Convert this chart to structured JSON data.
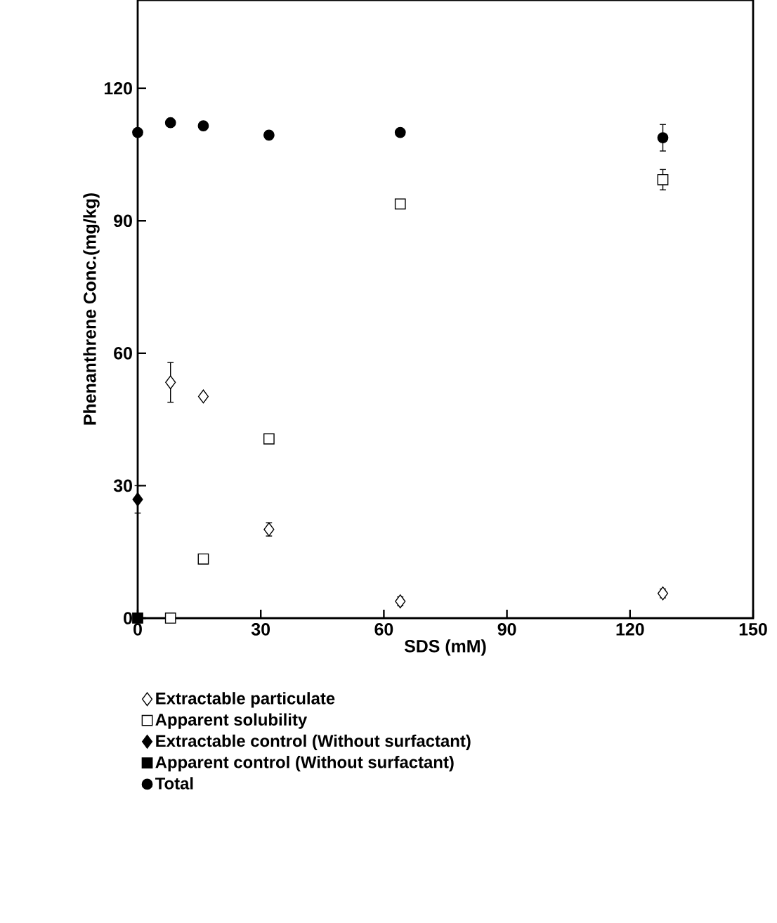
{
  "chart_data": {
    "type": "scatter",
    "xlabel": "SDS (mM)",
    "ylabel": "Phenanthrene Conc.(mg/kg)",
    "xlim": [
      0,
      150
    ],
    "ylim": [
      0,
      140
    ],
    "xticks": [
      0,
      30,
      60,
      90,
      120,
      150
    ],
    "yticks": [
      0,
      30,
      60,
      90,
      120
    ],
    "grid": false,
    "legend": "bottom",
    "series": [
      {
        "name": "Extractable particulate",
        "color": "#ffffff",
        "marker": "diamond",
        "x": [
          8,
          16,
          32,
          64,
          128
        ],
        "values": [
          53.4,
          50.2,
          20.1,
          3.8,
          5.6
        ],
        "errors": [
          4.5,
          0.5,
          1.5,
          1,
          1
        ]
      },
      {
        "name": "Apparent solubility",
        "color": "#ffffff",
        "marker": "square",
        "x": [
          8,
          16,
          32,
          64,
          128
        ],
        "values": [
          0,
          13.4,
          40.6,
          93.8,
          99.3
        ],
        "errors": [
          null,
          0.5,
          0.5,
          0.5,
          2.3
        ]
      },
      {
        "name": "Extractable control (Without surfactant)",
        "color": "#000000",
        "marker": "diamond",
        "x": [
          0
        ],
        "values": [
          26.9
        ],
        "errors": [
          3.1
        ]
      },
      {
        "name": "Apparent control (Without surfactant)",
        "color": "#000000",
        "marker": "square",
        "x": [
          0
        ],
        "values": [
          0
        ],
        "errors": [
          null
        ]
      },
      {
        "name": "Total",
        "color": "#000000",
        "marker": "circle",
        "x": [
          0,
          8,
          16,
          32,
          64,
          128
        ],
        "values": [
          110,
          112.2,
          111.5,
          109.4,
          110,
          108.8
        ],
        "errors": [
          null,
          null,
          null,
          null,
          null,
          3
        ]
      }
    ]
  }
}
